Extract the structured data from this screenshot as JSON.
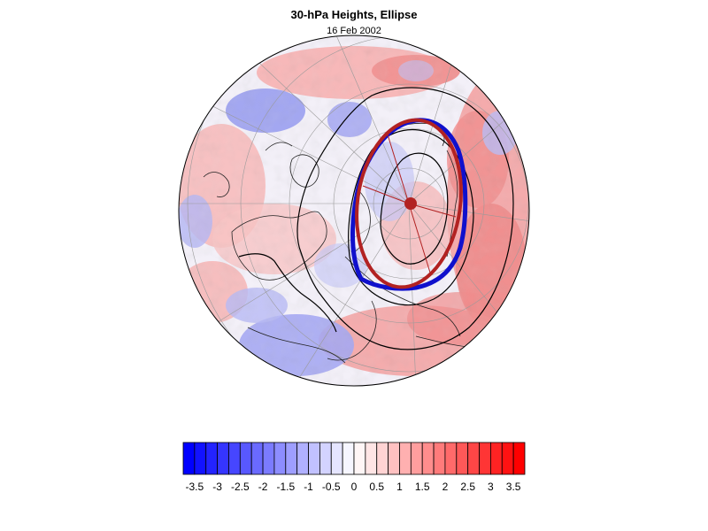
{
  "title": "30-hPa Heights, Ellipse",
  "subtitle": "16 Feb 2002",
  "map": {
    "projection": "polar-stereographic-north",
    "field": "30-hPa height anomaly",
    "ellipse_color": "#b22222",
    "contour_color": "#000000",
    "edge_contour_color": "#1010cc"
  },
  "colorbar": {
    "min": -3.75,
    "max": 3.75,
    "step": 0.25,
    "colors_low": "#0000ff",
    "colors_mid": "#ffffff",
    "colors_high": "#ff0000",
    "tick_labels": [
      "-3.5",
      "-3",
      "-2.5",
      "-2",
      "-1.5",
      "-1",
      "-0.5",
      "0",
      "0.5",
      "1",
      "1.5",
      "2",
      "2.5",
      "3",
      "3.5"
    ]
  }
}
